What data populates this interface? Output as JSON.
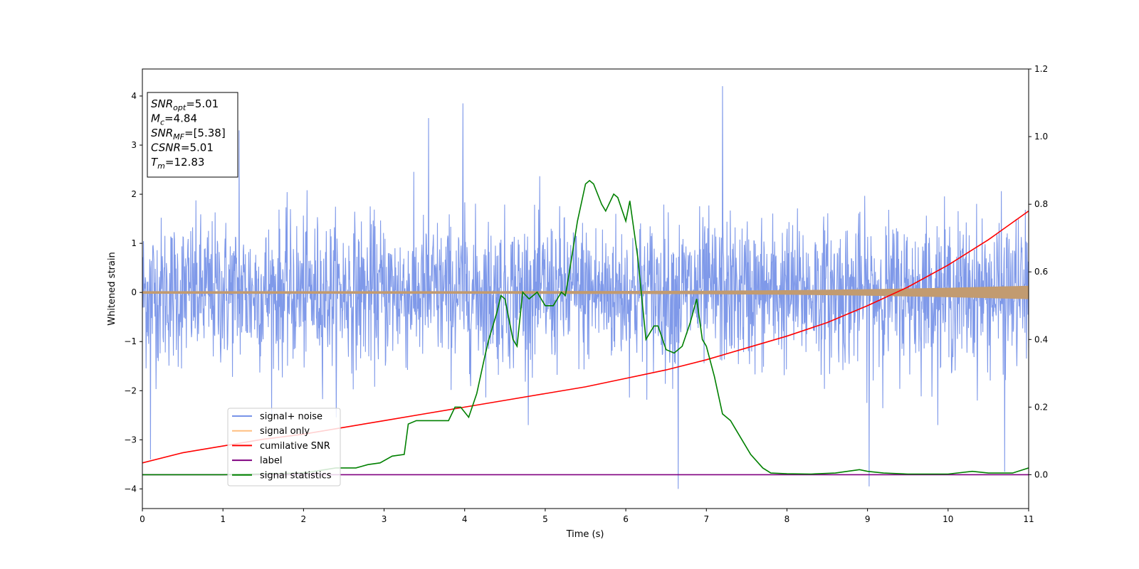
{
  "chart_data": {
    "type": "line",
    "title": "",
    "xlabel": "Time (s)",
    "ylabel": "Whitened strain",
    "y2label": "",
    "xlim": [
      0,
      11
    ],
    "ylim": [
      -4.4,
      4.55
    ],
    "y2lim": [
      -0.1,
      1.2
    ],
    "x_ticks": [
      0,
      1,
      2,
      3,
      4,
      5,
      6,
      7,
      8,
      9,
      10,
      11
    ],
    "y_ticks": [
      -4,
      -3,
      -2,
      -1,
      0,
      1,
      2,
      3,
      4
    ],
    "y2_ticks": [
      "0.0",
      "0.2",
      "0.4",
      "0.6",
      "0.8",
      "1.0",
      "1.2"
    ],
    "grid": false,
    "legend_placement": "lower-left",
    "legend": [
      {
        "name": "signal+ noise",
        "color": "#7893e8"
      },
      {
        "name": "signal only",
        "color": "#ffbf80"
      },
      {
        "name": "cumilative SNR",
        "color": "#ff0000"
      },
      {
        "name": "label",
        "color": "#800080"
      },
      {
        "name": "signal statistics",
        "color": "#008000"
      }
    ],
    "info_box": [
      {
        "base": "SNR",
        "sub": "opt",
        "value": "=5.01"
      },
      {
        "base": "M",
        "sub": "c",
        "value": "=4.84"
      },
      {
        "base": "SNR",
        "sub": "MF",
        "value": "=[5.38]"
      },
      {
        "base": "CSNR",
        "sub": "",
        "value": "=5.01"
      },
      {
        "base": "T",
        "sub": "m",
        "value": "=12.83"
      }
    ],
    "series": [
      {
        "name": "signal+ noise",
        "axis": "left",
        "style": "noise",
        "color": "#7893e8",
        "noise_sigma": 0.75,
        "notable_peaks": [
          [
            1.2,
            3.3
          ],
          [
            3.55,
            3.55
          ],
          [
            3.98,
            3.85
          ],
          [
            7.2,
            4.2
          ],
          [
            6.65,
            -4.0
          ],
          [
            9.02,
            -3.95
          ],
          [
            10.7,
            -3.65
          ],
          [
            0.1,
            -3.4
          ]
        ]
      },
      {
        "name": "signal only",
        "axis": "left",
        "style": "envelope",
        "color": "#c29b70",
        "envelope": {
          "x": [
            0,
            4,
            6,
            7,
            8,
            9,
            10,
            11
          ],
          "amplitude": [
            0.02,
            0.02,
            0.025,
            0.03,
            0.04,
            0.06,
            0.09,
            0.13
          ]
        }
      },
      {
        "name": "cumilative SNR",
        "axis": "right",
        "style": "line",
        "color": "#ff0000",
        "x": [
          0,
          0.5,
          1,
          1.5,
          2,
          2.5,
          3,
          3.5,
          4,
          4.5,
          5,
          5.5,
          6,
          6.5,
          7,
          7.5,
          8,
          8.5,
          9,
          9.5,
          10,
          10.5,
          11
        ],
        "y": [
          0.035,
          0.065,
          0.085,
          0.105,
          0.12,
          0.14,
          0.16,
          0.18,
          0.2,
          0.22,
          0.24,
          0.26,
          0.285,
          0.31,
          0.34,
          0.375,
          0.41,
          0.45,
          0.5,
          0.555,
          0.62,
          0.695,
          0.78
        ]
      },
      {
        "name": "label",
        "axis": "right",
        "style": "line",
        "color": "#800080",
        "x": [
          0,
          11
        ],
        "y": [
          0.0,
          0.0
        ]
      },
      {
        "name": "signal statistics",
        "axis": "right",
        "style": "line",
        "color": "#008000",
        "x": [
          0,
          1,
          2,
          2.4,
          2.65,
          2.8,
          2.95,
          3.1,
          3.25,
          3.3,
          3.4,
          3.5,
          3.6,
          3.7,
          3.8,
          3.88,
          3.95,
          4.05,
          4.15,
          4.25,
          4.3,
          4.4,
          4.45,
          4.5,
          4.6,
          4.65,
          4.72,
          4.8,
          4.9,
          5.0,
          5.1,
          5.2,
          5.25,
          5.3,
          5.4,
          5.5,
          5.55,
          5.6,
          5.7,
          5.75,
          5.85,
          5.9,
          6.0,
          6.05,
          6.15,
          6.25,
          6.35,
          6.4,
          6.5,
          6.6,
          6.7,
          6.8,
          6.88,
          6.95,
          7.0,
          7.1,
          7.2,
          7.3,
          7.35,
          7.45,
          7.55,
          7.7,
          7.8,
          8.0,
          8.3,
          8.6,
          8.75,
          8.9,
          9.0,
          9.2,
          9.5,
          10.0,
          10.3,
          10.5,
          10.8,
          11.0
        ],
        "y": [
          0.0,
          0.0,
          0.005,
          0.02,
          0.02,
          0.03,
          0.035,
          0.055,
          0.06,
          0.15,
          0.16,
          0.16,
          0.16,
          0.16,
          0.16,
          0.2,
          0.2,
          0.17,
          0.24,
          0.35,
          0.4,
          0.48,
          0.53,
          0.52,
          0.4,
          0.38,
          0.54,
          0.52,
          0.54,
          0.5,
          0.5,
          0.54,
          0.53,
          0.6,
          0.75,
          0.86,
          0.87,
          0.86,
          0.8,
          0.78,
          0.83,
          0.82,
          0.75,
          0.81,
          0.64,
          0.4,
          0.44,
          0.44,
          0.37,
          0.36,
          0.38,
          0.45,
          0.52,
          0.4,
          0.38,
          0.29,
          0.18,
          0.16,
          0.14,
          0.1,
          0.06,
          0.02,
          0.005,
          0.003,
          0.002,
          0.005,
          0.01,
          0.015,
          0.01,
          0.005,
          0.002,
          0.002,
          0.01,
          0.005,
          0.005,
          0.02
        ]
      }
    ]
  }
}
